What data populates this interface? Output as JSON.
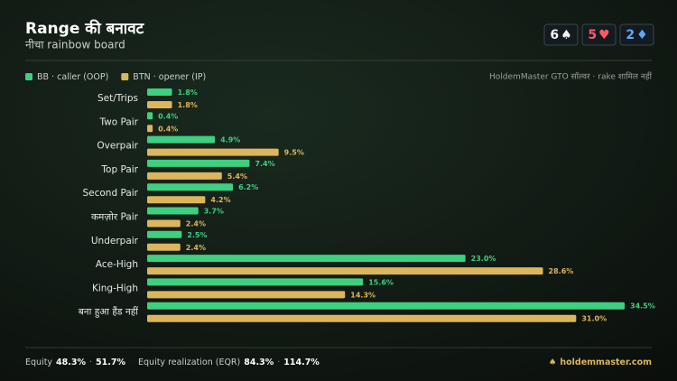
{
  "chart_data": {
    "type": "bar",
    "orientation": "horizontal",
    "title": "Range की बनावट",
    "subtitle": "नीचा rainbow board",
    "note": "HoldemMaster GTO सॉल्वर · rake शामिल नहीं",
    "categories": [
      "Set/Trips",
      "Two Pair",
      "Overpair",
      "Top Pair",
      "Second Pair",
      "कमज़ोर Pair",
      "Underpair",
      "Ace-High",
      "King-High",
      "बना हुआ हैंड नहीं"
    ],
    "series": [
      {
        "name": "BB · caller (OOP)",
        "color": "#3fcf80",
        "values": [
          1.8,
          0.4,
          4.9,
          7.4,
          6.2,
          3.7,
          2.5,
          23.0,
          15.6,
          34.5
        ],
        "value_labels": [
          "1.8%",
          "0.4%",
          "4.9%",
          "7.4%",
          "6.2%",
          "3.7%",
          "2.5%",
          "23.0%",
          "15.6%",
          "34.5%"
        ]
      },
      {
        "name": "BTN · opener (IP)",
        "color": "#dcb65c",
        "values": [
          1.8,
          0.4,
          9.5,
          5.4,
          4.2,
          2.4,
          2.4,
          28.6,
          14.3,
          31.0
        ],
        "value_labels": [
          "1.8%",
          "0.4%",
          "9.5%",
          "5.4%",
          "4.2%",
          "2.4%",
          "2.4%",
          "28.6%",
          "14.3%",
          "31.0%"
        ]
      }
    ],
    "legend": "top-left"
  },
  "cards": [
    {
      "rank": "6",
      "suit": "♠",
      "color": "#f2f2f2"
    },
    {
      "rank": "5",
      "suit": "♥",
      "color": "#ff5a64"
    },
    {
      "rank": "2",
      "suit": "♦",
      "color": "#5aa8ff"
    }
  ],
  "footer": {
    "equity_label": "Equity",
    "equity_bb": "48.3%",
    "sep": "·",
    "equity_btn": "51.7%",
    "eqr_label": "Equity realization (EQR)",
    "eqr_bb": "84.3%",
    "eqr_btn": "114.7%",
    "brand": "holdemmaster.com",
    "brand_icon": "♠"
  }
}
